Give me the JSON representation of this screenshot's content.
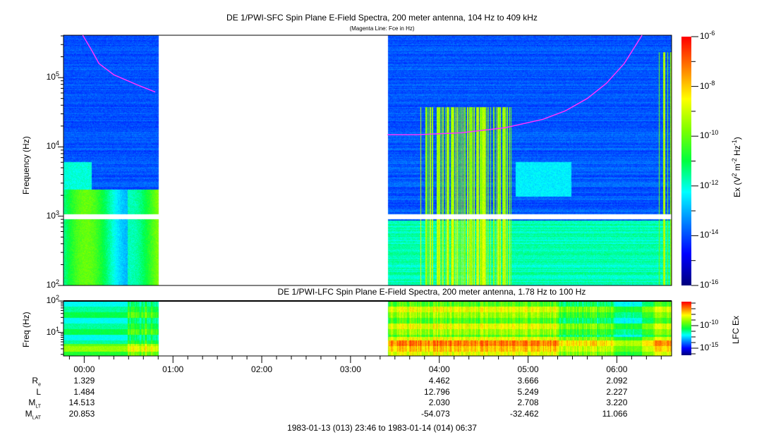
{
  "chart_data": [
    {
      "type": "heatmap",
      "title": "DE 1/PWI-SFC  Spin Plane E-Field Spectra, 200 meter antenna, 104 Hz to 409 kHz",
      "subtitle": "(Magenta Line: Fce in Hz)",
      "ylabel": "Frequency (Hz)",
      "yscale": "log",
      "ylim": [
        100,
        409000
      ],
      "yticks": [
        {
          "v": 100,
          "label": "10",
          "exp": "2"
        },
        {
          "v": 1000,
          "label": "10",
          "exp": "3"
        },
        {
          "v": 10000,
          "label": "10",
          "exp": "4"
        },
        {
          "v": 100000,
          "label": "10",
          "exp": "5"
        }
      ],
      "xlim": [
        "23:46",
        "06:37"
      ],
      "data_gap": [
        "00:50",
        "03:25"
      ],
      "colorbar": {
        "label": "Ex (V",
        "label_parts": [
          "Ex (V",
          "2",
          " m",
          "-2",
          " Hz",
          "-1",
          ")"
        ],
        "scale": "log",
        "range": [
          1e-16,
          1e-06
        ],
        "ticks": [
          {
            "label": "10",
            "exp": "-6"
          },
          {
            "label": "10",
            "exp": "-8"
          },
          {
            "label": "10",
            "exp": "-10"
          },
          {
            "label": "10",
            "exp": "-12"
          },
          {
            "label": "10",
            "exp": "-14"
          },
          {
            "label": "10",
            "exp": "-16"
          }
        ],
        "colormap": [
          "#00007f",
          "#0000ff",
          "#007fff",
          "#00ffff",
          "#00ff40",
          "#7fff00",
          "#ffff00",
          "#ff7f00",
          "#ff0000"
        ]
      },
      "fce_line": {
        "color": "#ff33ff",
        "segments": [
          [
            [
              "23:59",
              409000
            ],
            [
              "00:05",
              250000
            ],
            [
              "00:10",
              160000
            ],
            [
              "00:20",
              110000
            ],
            [
              "00:35",
              80000
            ],
            [
              "00:48",
              62000
            ]
          ],
          [
            [
              "03:25",
              15000
            ],
            [
              "03:45",
              15000
            ],
            [
              "04:15",
              16000
            ],
            [
              "04:45",
              19000
            ],
            [
              "05:10",
              25000
            ],
            [
              "05:25",
              33000
            ],
            [
              "05:40",
              50000
            ],
            [
              "05:53",
              83000
            ],
            [
              "06:05",
              160000
            ],
            [
              "06:17",
              409000
            ]
          ]
        ]
      }
    },
    {
      "type": "heatmap",
      "title": "DE 1/PWI-LFC  Spin Plane E-Field Spectra, 200 meter antenna, 1.78 Hz to 100 Hz",
      "ylabel": "Freq (Hz)",
      "yscale": "log",
      "ylim": [
        1.78,
        100
      ],
      "yticks": [
        {
          "v": 10,
          "label": "10",
          "exp": "1"
        },
        {
          "v": 100,
          "label": "10",
          "exp": "2"
        }
      ],
      "xlim": [
        "23:46",
        "06:37"
      ],
      "data_gap": [
        "00:50",
        "03:25"
      ],
      "colorbar": {
        "label": "LFC Ex",
        "scale": "log",
        "ticks": [
          {
            "label": "10",
            "exp": "-10"
          },
          {
            "label": "10",
            "exp": "-15"
          }
        ]
      }
    }
  ],
  "xaxis": {
    "ticks": [
      "00:00",
      "01:00",
      "02:00",
      "03:00",
      "04:00",
      "05:00",
      "06:00"
    ]
  },
  "ephemeris": {
    "rows": [
      {
        "label": "R",
        "sub": "e",
        "values": [
          "1.329",
          "",
          "",
          "",
          "4.462",
          "3.666",
          "2.092"
        ]
      },
      {
        "label": "L",
        "sub": "",
        "values": [
          "1.484",
          "",
          "",
          "",
          "12.796",
          "5.249",
          "2.227"
        ]
      },
      {
        "label": "M",
        "sub": "LT",
        "values": [
          "14.513",
          "",
          "",
          "",
          "2.030",
          "2.708",
          "3.220"
        ]
      },
      {
        "label": "M",
        "sub": "LAT",
        "values": [
          "20.853",
          "",
          "",
          "",
          "-54.073",
          "-32.462",
          "11.066"
        ]
      }
    ]
  },
  "date_range": "1983-01-13 (013) 23:46 to 1983-01-14 (014) 06:37"
}
